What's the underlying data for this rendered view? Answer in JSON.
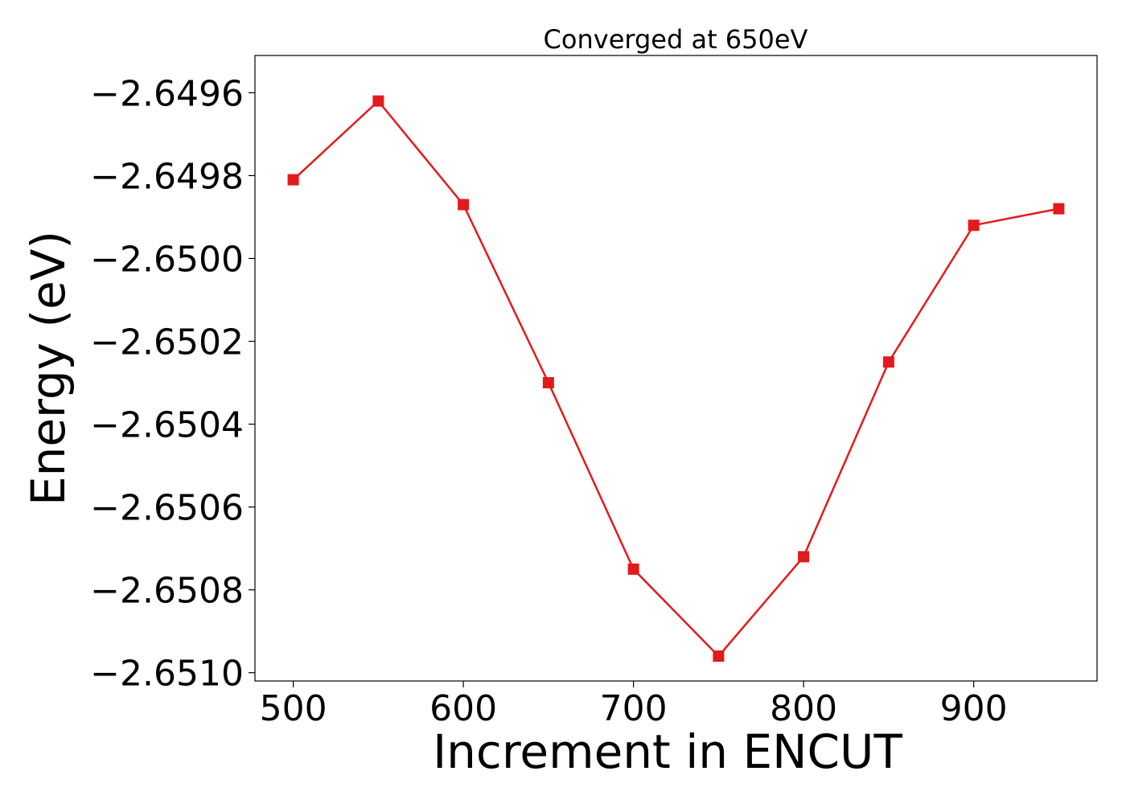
{
  "chart_data": {
    "type": "line",
    "title": "Converged at 650eV",
    "xlabel": "Increment in ENCUT",
    "ylabel": "Energy (eV)",
    "x": [
      500,
      550,
      600,
      650,
      700,
      750,
      800,
      850,
      900,
      950
    ],
    "series": [
      {
        "values": [
          -2.64981,
          -2.64962,
          -2.64987,
          -2.6503,
          -2.65075,
          -2.65096,
          -2.65072,
          -2.65025,
          -2.64992,
          -2.64988
        ],
        "color": "#e31a1c",
        "marker": "square"
      }
    ],
    "xlim": [
      477.5,
      972.5
    ],
    "ylim": [
      -2.65102,
      -2.64951
    ],
    "xticks": [
      500,
      600,
      700,
      800,
      900
    ],
    "yticks": [
      -2.6496,
      -2.6498,
      -2.65,
      -2.6502,
      -2.6504,
      -2.6506,
      -2.6508,
      -2.651
    ],
    "xtick_labels": [
      "500",
      "600",
      "700",
      "800",
      "900"
    ],
    "ytick_labels": [
      "−2.6496",
      "−2.6498",
      "−2.6500",
      "−2.6502",
      "−2.6504",
      "−2.6506",
      "−2.6508",
      "−2.6510"
    ],
    "grid": false,
    "legend": "none"
  }
}
